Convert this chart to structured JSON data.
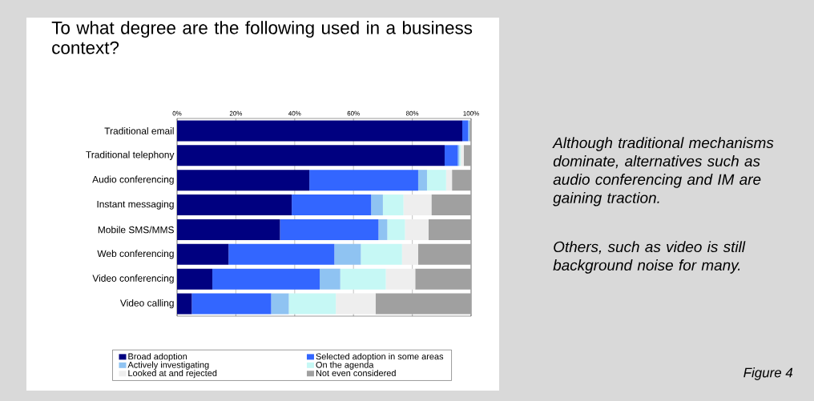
{
  "chart_data": {
    "type": "bar",
    "orientation": "horizontal",
    "stacked": true,
    "title": "To what degree are the following used in a business context?",
    "categories": [
      "Traditional email",
      "Traditional telephony",
      "Audio conferencing",
      "Instant messaging",
      "Mobile SMS/MMS",
      "Web conferencing",
      "Video conferencing",
      "Video calling"
    ],
    "series": [
      {
        "name": "Broad adoption",
        "color": "#000080",
        "values": [
          97,
          91,
          45,
          39,
          35,
          17.5,
          12,
          5
        ]
      },
      {
        "name": "Selected adoption in some areas",
        "color": "#3366ff",
        "values": [
          2,
          4.5,
          37,
          27,
          33.5,
          36,
          36.5,
          27
        ]
      },
      {
        "name": "Actively investigating",
        "color": "#8fc3f2",
        "values": [
          0.5,
          0.5,
          3,
          4,
          3,
          9,
          7,
          6
        ]
      },
      {
        "name": "On the agenda",
        "color": "#c6f8f5",
        "values": [
          0,
          0.5,
          6.5,
          7,
          6,
          14,
          15.5,
          16
        ]
      },
      {
        "name": "Looked at and rejected",
        "color": "#eeeeee",
        "values": [
          0,
          1,
          2,
          9.5,
          8,
          5.5,
          10,
          13.5
        ]
      },
      {
        "name": "Not even considered",
        "color": "#a0a0a0",
        "values": [
          0.5,
          2.5,
          6.5,
          13.5,
          14.5,
          18,
          19,
          32.5
        ]
      }
    ],
    "xlim": [
      0,
      100
    ],
    "xticks": [
      {
        "value": 0,
        "label": "0%"
      },
      {
        "value": 20,
        "label": "20%"
      },
      {
        "value": 40,
        "label": "40%"
      },
      {
        "value": 60,
        "label": "60%"
      },
      {
        "value": 80,
        "label": "80%"
      },
      {
        "value": 100,
        "label": "100%"
      }
    ],
    "grid": "x",
    "legend": "bottom",
    "annotations": [
      "Although traditional mechanisms dominate, alternatives such as audio conferencing and IM are gaining traction.",
      "Others, such as video is still background noise for many.",
      "Figure 4"
    ]
  }
}
